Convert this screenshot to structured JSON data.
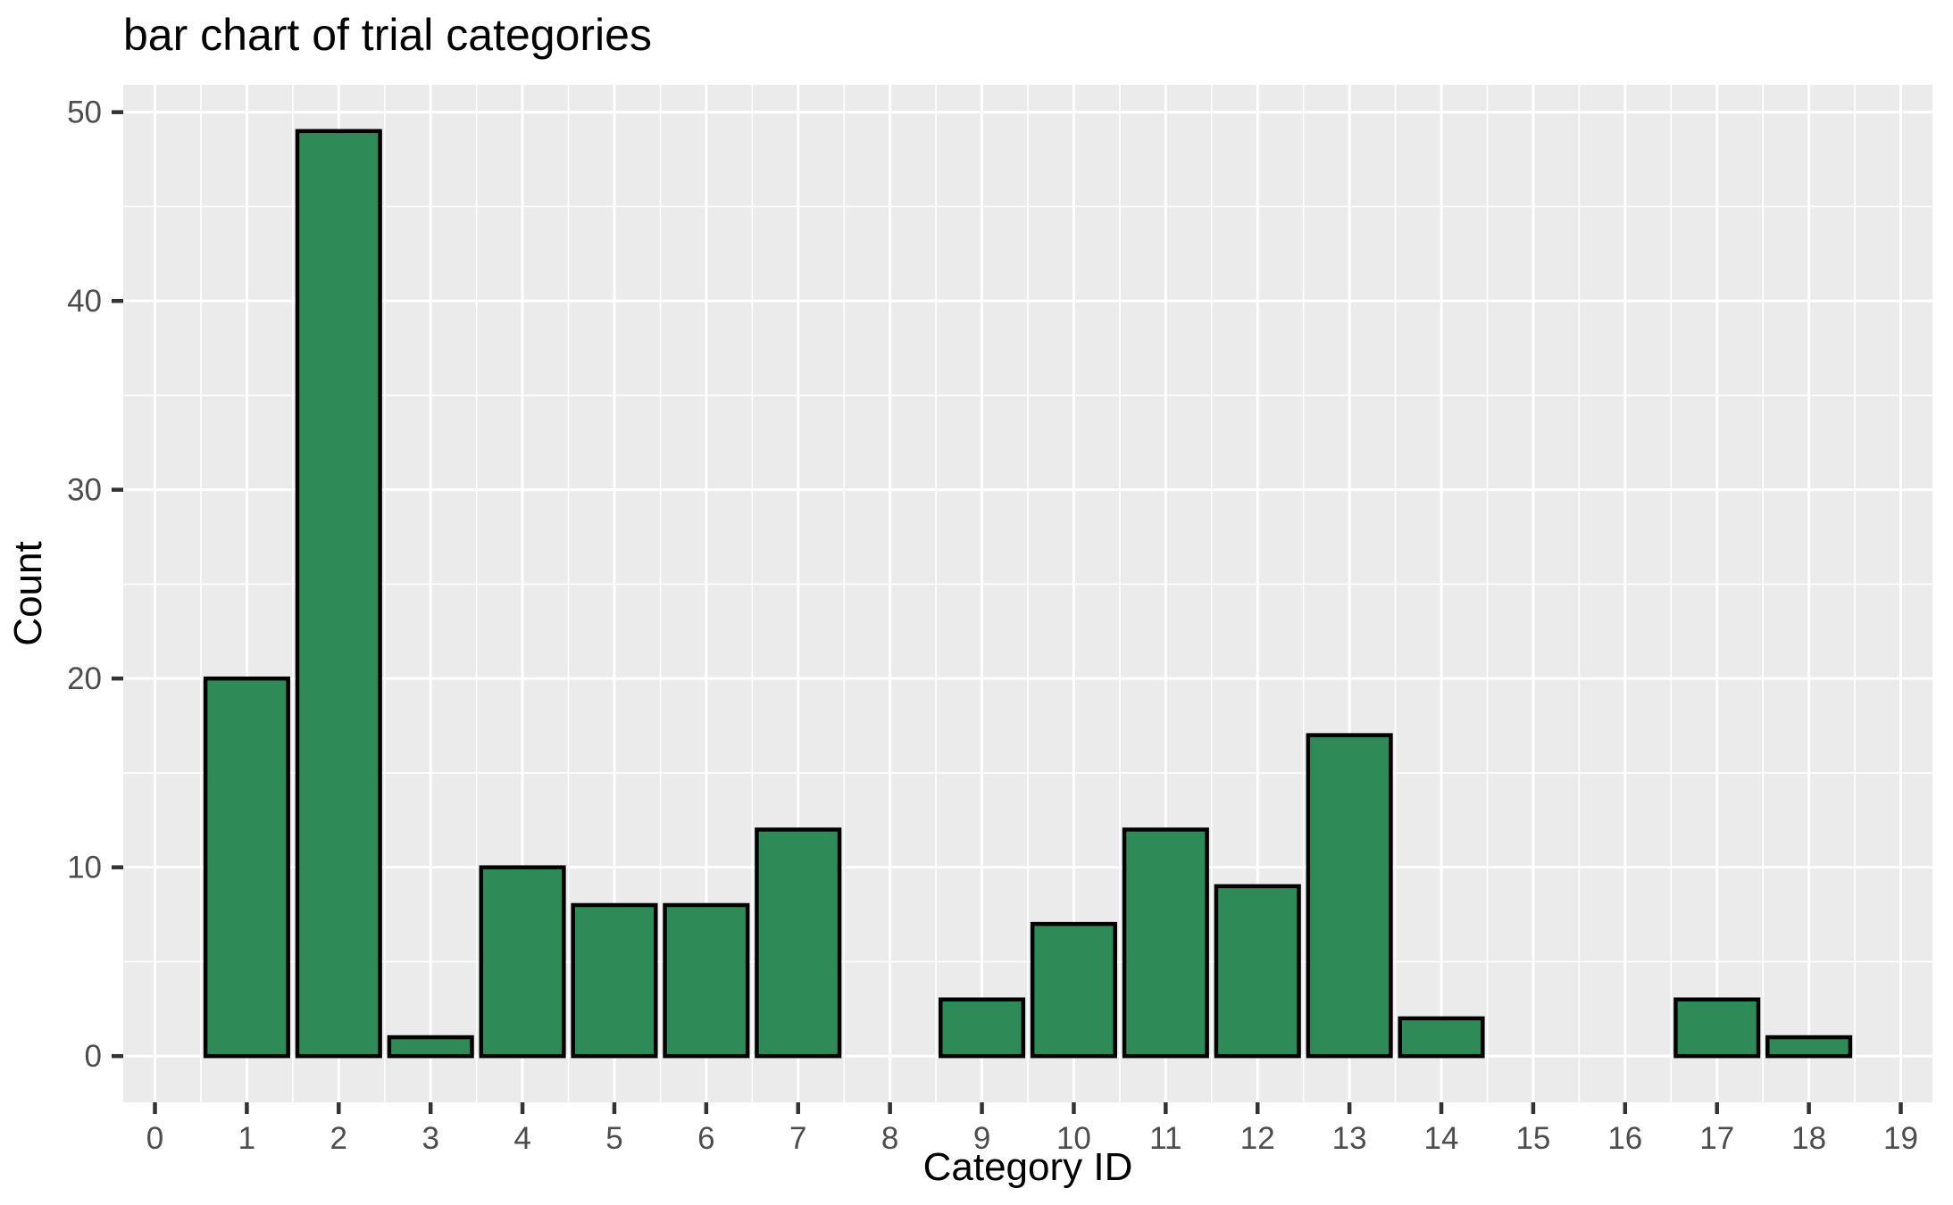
{
  "chart_data": {
    "type": "bar",
    "title": "bar chart of trial categories",
    "xlabel": "Category ID",
    "ylabel": "Count",
    "categories": [
      0,
      1,
      2,
      3,
      4,
      5,
      6,
      7,
      8,
      9,
      10,
      11,
      12,
      13,
      14,
      15,
      16,
      17,
      18,
      19
    ],
    "values": [
      0,
      20,
      49,
      1,
      10,
      8,
      8,
      12,
      0,
      3,
      7,
      12,
      9,
      17,
      2,
      0,
      0,
      3,
      1,
      0
    ],
    "x_tick_labels": [
      "0",
      "1",
      "2",
      "3",
      "4",
      "5",
      "6",
      "7",
      "8",
      "9",
      "10",
      "11",
      "12",
      "13",
      "14",
      "15",
      "16",
      "17",
      "18",
      "19"
    ],
    "y_tick_labels": [
      "0",
      "10",
      "20",
      "30",
      "40",
      "50"
    ],
    "y_tick_values": [
      0,
      10,
      20,
      30,
      40,
      50
    ],
    "xlim": [
      -0.345,
      19.345
    ],
    "ylim": [
      -2.45,
      51.45
    ],
    "bar_width": 0.9,
    "grid": "major-and-minor",
    "legend_position": "none",
    "colors": {
      "bar_fill": "#2E8B57",
      "bar_stroke": "#000000",
      "panel_background": "#EBEBEB",
      "grid_line": "#FFFFFF",
      "tick_label": "#4D4D4D",
      "tick_mark": "#333333",
      "title": "#000000"
    }
  }
}
